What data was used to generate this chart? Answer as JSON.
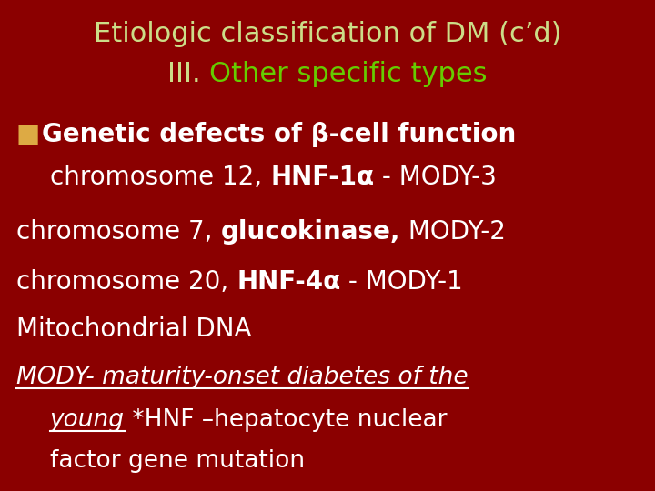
{
  "bg_color": "#8B0000",
  "title_line1": "Etiologic classification of DM (c’d)",
  "title_line2_prefix": "III. ",
  "title_line2_suffix": "Other specific types",
  "title_color": "#CCDD88",
  "title_green_color": "#66CC00",
  "bullet_color": "#DDAA44",
  "text_color": "#FFFFFF",
  "bullet_marker": "■",
  "bullet_text": "Genetic defects of β-cell function",
  "line2_plain": "chromosome 12, ",
  "line2_bold": "HNF-1α",
  "line2_rest": " - MODY-3",
  "line3_plain": "chromosome 7, ",
  "line3_bold": "glucokinase,",
  "line3_rest": " MODY-2",
  "line4_plain": "chromosome 20, ",
  "line4_bold": "HNF-4α",
  "line4_rest": " - MODY-1",
  "line5": "Mitochondrial DNA",
  "line6_italic": "MODY- maturity-onset diabetes of the",
  "line7_italic_under": "young",
  "line7_rest": " *HNF –hepatocyte nuclear",
  "line8": "factor gene mutation",
  "figsize": [
    7.2,
    5.4
  ],
  "dpi": 100
}
